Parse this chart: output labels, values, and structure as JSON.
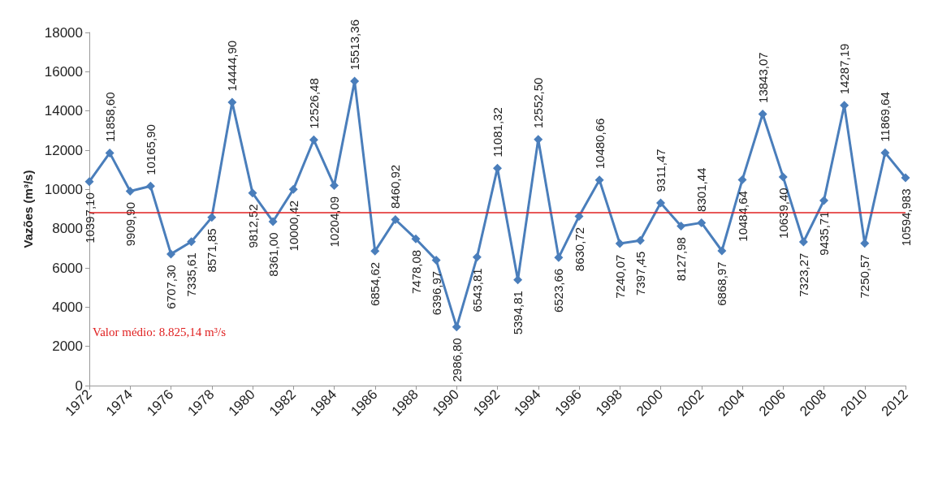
{
  "chart_data": {
    "type": "line",
    "ylabel": "Vazões (m³/s)",
    "x": [
      1972,
      1973,
      1974,
      1975,
      1976,
      1977,
      1978,
      1979,
      1980,
      1981,
      1982,
      1983,
      1984,
      1985,
      1986,
      1987,
      1988,
      1989,
      1990,
      1991,
      1992,
      1993,
      1994,
      1995,
      1996,
      1997,
      1998,
      1999,
      2000,
      2001,
      2002,
      2003,
      2004,
      2005,
      2006,
      2007,
      2008,
      2009,
      2010,
      2011,
      2012
    ],
    "series": [
      {
        "color": "#4a7ebb",
        "values": [
          10397.1,
          11858.6,
          9909.9,
          10165.9,
          6707.3,
          7335.61,
          8571.85,
          14444.9,
          9812.52,
          8361.0,
          10000.42,
          12526.48,
          10204.09,
          15513.36,
          6854.62,
          8460.92,
          7478.08,
          6396.97,
          2986.8,
          6543.81,
          11081.32,
          5394.81,
          12552.5,
          6523.66,
          8630.72,
          10480.66,
          7240.07,
          7397.45,
          9311.47,
          8127.98,
          8301.44,
          6868.97,
          10484.64,
          13843.07,
          10639.4,
          7323.27,
          9435.71,
          14287.19,
          7250.57,
          11869.64,
          10594.983
        ],
        "value_labels": [
          "10397,10",
          "11858,60",
          "9909,90",
          "10165,90",
          "6707,30",
          "7335,61",
          "8571,85",
          "14444,90",
          "9812,52",
          "8361,00",
          "10000,42",
          "12526,48",
          "10204,09",
          "15513,36",
          "6854,62",
          "8460,92",
          "7478,08",
          "6396,97",
          "2986,80",
          "6543,81",
          "11081,32",
          "5394,81",
          "12552,50",
          "6523,66",
          "8630,72",
          "10480,66",
          "7240,07",
          "7397,45",
          "9311,47",
          "8127,98",
          "8301,44",
          "6868,97",
          "10484,64",
          "13843,07",
          "10639,40",
          "7323,27",
          "9435,71",
          "14287,19",
          "7250,57",
          "11869,64",
          "10594,983"
        ]
      }
    ],
    "xlim": [
      1972,
      2012
    ],
    "xticks": [
      1972,
      1974,
      1976,
      1978,
      1980,
      1982,
      1984,
      1986,
      1988,
      1990,
      1992,
      1994,
      1996,
      1998,
      2000,
      2002,
      2004,
      2006,
      2008,
      2010,
      2012
    ],
    "ylim": [
      0,
      18000
    ],
    "yticks": [
      0,
      2000,
      4000,
      6000,
      8000,
      10000,
      12000,
      14000,
      16000,
      18000
    ],
    "ref_lines": [
      {
        "axis": "y",
        "value": 8825.14,
        "label": "Valor médio: 8.825,14 m³/s",
        "color": "#e02020"
      }
    ],
    "marker": "diamond",
    "grid": false
  }
}
